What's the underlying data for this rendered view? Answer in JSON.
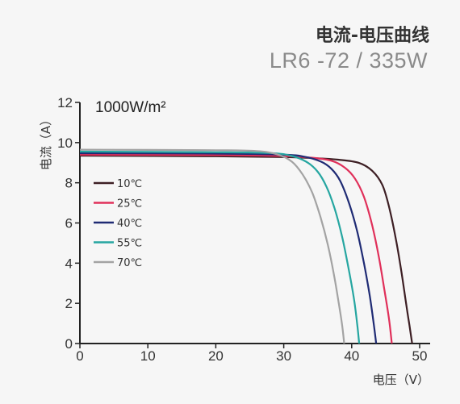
{
  "chart_data": {
    "type": "line",
    "title": "电流-电压曲线",
    "subtitle": "LR6 -72 / 335W",
    "annotation": "1000W/m²",
    "xlabel": "电压（V）",
    "ylabel": "电流（A）",
    "xlim": [
      0,
      50
    ],
    "ylim": [
      0,
      12
    ],
    "xticks": [
      0,
      10,
      20,
      30,
      40,
      50
    ],
    "yticks": [
      0,
      2,
      4,
      6,
      8,
      10,
      12
    ],
    "grid": false,
    "legend_position": "left",
    "series": [
      {
        "name": "10℃",
        "color": "#3d1f24",
        "x": [
          0,
          20,
          30,
          35,
          38,
          41,
          43,
          44.5,
          45.5,
          46.5,
          47.3,
          48,
          48.5,
          48.9
        ],
        "y": [
          9.35,
          9.32,
          9.28,
          9.22,
          9.15,
          9.0,
          8.6,
          7.9,
          6.8,
          5.2,
          3.6,
          2.0,
          0.9,
          0
        ]
      },
      {
        "name": "25℃",
        "color": "#e0305a",
        "x": [
          0,
          20,
          30,
          34,
          37,
          39,
          40.5,
          41.8,
          43,
          44,
          44.8,
          45.5,
          45.9
        ],
        "y": [
          9.4,
          9.38,
          9.33,
          9.25,
          9.1,
          8.75,
          8.2,
          7.3,
          5.9,
          4.3,
          2.7,
          1.2,
          0
        ]
      },
      {
        "name": "40℃",
        "color": "#1f2b74",
        "x": [
          0,
          20,
          30,
          33,
          35.5,
          37,
          38.3,
          39.6,
          40.8,
          41.8,
          42.6,
          43.2,
          43.6
        ],
        "y": [
          9.47,
          9.45,
          9.4,
          9.3,
          9.05,
          8.7,
          8.1,
          7.0,
          5.6,
          4.0,
          2.5,
          1.1,
          0
        ]
      },
      {
        "name": "55℃",
        "color": "#26a6a1",
        "x": [
          0,
          20,
          28,
          31,
          33.3,
          35,
          36.3,
          37.5,
          38.6,
          39.5,
          40.3,
          40.8,
          41.1
        ],
        "y": [
          9.55,
          9.52,
          9.48,
          9.35,
          9.05,
          8.55,
          7.8,
          6.7,
          5.3,
          3.8,
          2.3,
          1.0,
          0
        ]
      },
      {
        "name": "70℃",
        "color": "#a3a3a3",
        "x": [
          0,
          20,
          26,
          29,
          31.2,
          32.8,
          34.2,
          35.4,
          36.5,
          37.4,
          38.1,
          38.6,
          38.9
        ],
        "y": [
          9.65,
          9.62,
          9.58,
          9.42,
          9.05,
          8.4,
          7.5,
          6.3,
          4.9,
          3.4,
          2.0,
          0.9,
          0
        ]
      }
    ]
  }
}
